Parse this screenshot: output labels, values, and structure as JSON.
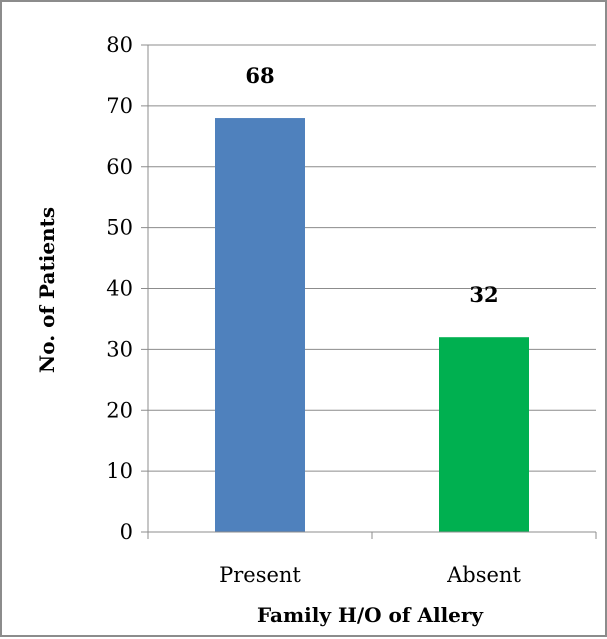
{
  "chart_data": {
    "type": "bar",
    "categories": [
      "Present",
      "Absent"
    ],
    "values": [
      68,
      32
    ],
    "data_labels": [
      "68",
      "32"
    ],
    "colors": [
      "#4f81bd",
      "#00b050"
    ],
    "xlabel": "Family H/O of Allery",
    "ylabel": "No. of Patients",
    "ylim": [
      0,
      80
    ],
    "yticks": [
      0,
      10,
      20,
      30,
      40,
      50,
      60,
      70,
      80
    ],
    "grid": "horizontal",
    "legend": "none"
  }
}
